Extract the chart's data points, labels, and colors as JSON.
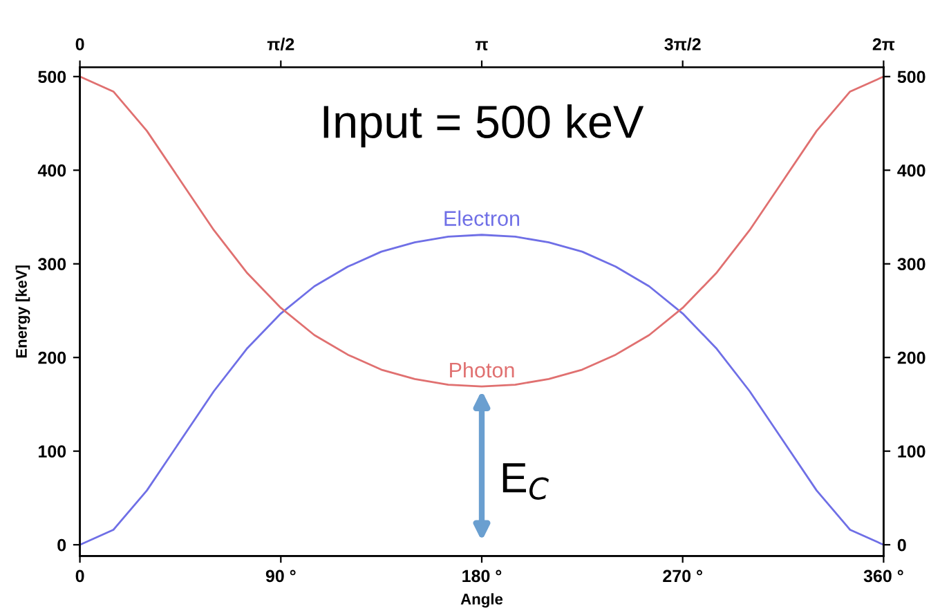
{
  "chart_data": {
    "type": "line",
    "xlabel": "Angle",
    "ylabel": "Energy [keV]",
    "x": [
      0,
      15,
      30,
      45,
      60,
      75,
      90,
      105,
      120,
      135,
      150,
      165,
      180,
      195,
      210,
      225,
      240,
      255,
      270,
      285,
      300,
      315,
      330,
      345,
      360
    ],
    "series": [
      {
        "name": "Electron",
        "color": "#6f6fe6",
        "values": [
          0,
          16,
          58,
          111,
          164,
          210,
          247,
          276,
          297,
          313,
          323,
          329,
          331,
          329,
          323,
          313,
          297,
          276,
          247,
          210,
          164,
          111,
          58,
          16,
          0
        ]
      },
      {
        "name": "Photon",
        "color": "#e07070",
        "values": [
          500,
          484,
          442,
          389,
          336,
          290,
          253,
          224,
          203,
          187,
          177,
          171,
          169,
          171,
          177,
          187,
          203,
          224,
          253,
          290,
          336,
          389,
          442,
          484,
          500
        ]
      }
    ],
    "xlim": [
      0,
      360
    ],
    "xticks": [
      {
        "value": 0,
        "label": "0"
      },
      {
        "value": 90,
        "label": "90 °"
      },
      {
        "value": 180,
        "label": "180 °"
      },
      {
        "value": 270,
        "label": "270 °"
      },
      {
        "value": 360,
        "label": "360 °"
      }
    ],
    "x2lim": [
      0,
      6.2832
    ],
    "x2ticks": [
      {
        "value": 0,
        "label": "0"
      },
      {
        "value": 1.5708,
        "label": "π/2"
      },
      {
        "value": 3.1416,
        "label": "π"
      },
      {
        "value": 4.7124,
        "label": "3π/2"
      },
      {
        "value": 6.2832,
        "label": "2π"
      }
    ],
    "ylim": [
      -12,
      510
    ],
    "yticks": [
      0,
      100,
      200,
      300,
      400,
      500
    ],
    "y2lim": [
      -12,
      510
    ],
    "y2ticks": [
      0,
      100,
      200,
      300,
      400,
      500
    ],
    "grid": false,
    "legend": false,
    "marker": "none",
    "line_style": "solid",
    "annotations": [
      "Input = 500 keV",
      {
        "text": "E$_{C}$",
        "x": 180,
        "y": 169
      }
    ]
  }
}
